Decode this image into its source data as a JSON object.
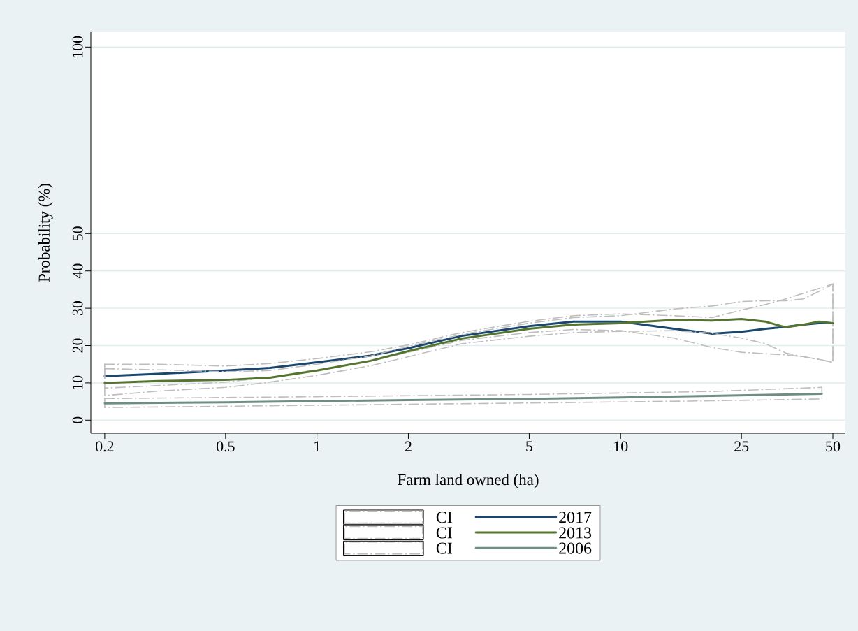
{
  "chart_data": {
    "type": "line",
    "xlabel": "Farm land owned (ha)",
    "ylabel": "Probability (%)",
    "log": "x",
    "grid": "y",
    "legend": "bottom",
    "xlim": [
      0.18,
      55
    ],
    "ylim": [
      -3.5,
      104
    ],
    "xticks": [
      0.2,
      0.5,
      1,
      2,
      5,
      10,
      25,
      50
    ],
    "yticks": [
      0,
      10,
      20,
      30,
      40,
      50,
      100
    ],
    "series": [
      {
        "name": "CI",
        "color": "#bebebe",
        "line_style": "dashed",
        "x": [
          0.2,
          0.3,
          0.5,
          0.7,
          1,
          1.5,
          2,
          3,
          5,
          7,
          10,
          15,
          20,
          25,
          30,
          35,
          40,
          45,
          50
        ],
        "values": [
          15,
          15,
          14.5,
          15.2,
          16.5,
          18.3,
          20.2,
          23.5,
          26.5,
          28,
          28.5,
          28,
          27.5,
          29.5,
          31,
          32.5,
          34,
          35.3,
          36.5
        ]
      },
      {
        "color": "#bebebe",
        "line_style": "dashed",
        "x": [
          0.2,
          0.2,
          0.3,
          0.5,
          0.7,
          1,
          1.5,
          2,
          3,
          5,
          7,
          10,
          15,
          20,
          25,
          30,
          35,
          40,
          45,
          50,
          50
        ],
        "values": [
          15,
          8.6,
          9.3,
          10.2,
          11.5,
          13.5,
          15.8,
          18.2,
          21.4,
          23.5,
          24.3,
          24,
          22,
          19.5,
          18.2,
          17.8,
          17.5,
          17,
          16.3,
          15.5,
          36.5
        ]
      },
      {
        "name": "2017",
        "color": "#1a476f",
        "line_style": "solid",
        "x": [
          0.2,
          0.3,
          0.5,
          0.7,
          1,
          1.5,
          2,
          3,
          5,
          7,
          10,
          15,
          20,
          25,
          30,
          35,
          40,
          45,
          50
        ],
        "values": [
          11.8,
          12.4,
          13.3,
          14,
          15.5,
          17.3,
          19.3,
          22.6,
          25.2,
          26.4,
          26.4,
          24.5,
          23.2,
          23.7,
          24.5,
          25,
          25.6,
          26,
          26
        ]
      },
      {
        "name": "CI",
        "color": "#bebebe",
        "line_style": "dashed",
        "x": [
          0.2,
          0.3,
          0.5,
          0.7,
          1,
          1.5,
          2,
          3,
          5,
          7,
          10,
          15,
          20,
          25,
          30,
          35,
          40,
          45,
          50
        ],
        "values": [
          13.8,
          13.5,
          13,
          13.3,
          15,
          17.2,
          19.8,
          23,
          26,
          27.5,
          28,
          29.8,
          30.6,
          31.8,
          32,
          32,
          32.5,
          34.5,
          36.5
        ]
      },
      {
        "color": "#bebebe",
        "line_style": "dashed",
        "x": [
          0.2,
          0.2,
          0.3,
          0.5,
          0.7,
          1,
          1.5,
          2,
          3,
          5,
          7,
          10,
          15,
          20,
          25,
          30,
          35,
          40,
          45,
          50,
          50
        ],
        "values": [
          13.8,
          6.6,
          7.8,
          8.8,
          10.2,
          12,
          14.6,
          17,
          20.5,
          22.5,
          23.5,
          23.8,
          24,
          23.3,
          22,
          20.5,
          18,
          17,
          16.3,
          15.5,
          36.5
        ]
      },
      {
        "name": "2013",
        "color": "#55752f",
        "line_style": "solid",
        "x": [
          0.2,
          0.3,
          0.5,
          0.7,
          1,
          1.5,
          2,
          3,
          5,
          7,
          10,
          15,
          20,
          25,
          30,
          35,
          40,
          45,
          50
        ],
        "values": [
          10,
          10.5,
          10.8,
          11.4,
          13.3,
          15.9,
          18.5,
          21.9,
          24.5,
          25.6,
          26,
          26.9,
          26.7,
          27.1,
          26.4,
          24.9,
          25.6,
          26.4,
          26
        ]
      },
      {
        "name": "CI",
        "color": "#bebebe",
        "line_style": "dashed",
        "x": [
          0.2,
          1,
          5,
          20,
          46
        ],
        "values": [
          5.8,
          6.3,
          6.9,
          7.7,
          8.8
        ]
      },
      {
        "color": "#bebebe",
        "line_style": "dashed",
        "x": [
          0.2,
          0.2,
          1,
          5,
          20,
          46,
          46
        ],
        "values": [
          5.8,
          3.4,
          4,
          4.6,
          5.2,
          5.7,
          8.8
        ]
      },
      {
        "name": "2006",
        "color": "#6e8e84",
        "line_style": "solid",
        "x": [
          0.2,
          0.5,
          1,
          2,
          5,
          10,
          20,
          46
        ],
        "values": [
          4.5,
          4.8,
          5.1,
          5.4,
          5.7,
          6.1,
          6.5,
          7.1
        ]
      }
    ]
  }
}
